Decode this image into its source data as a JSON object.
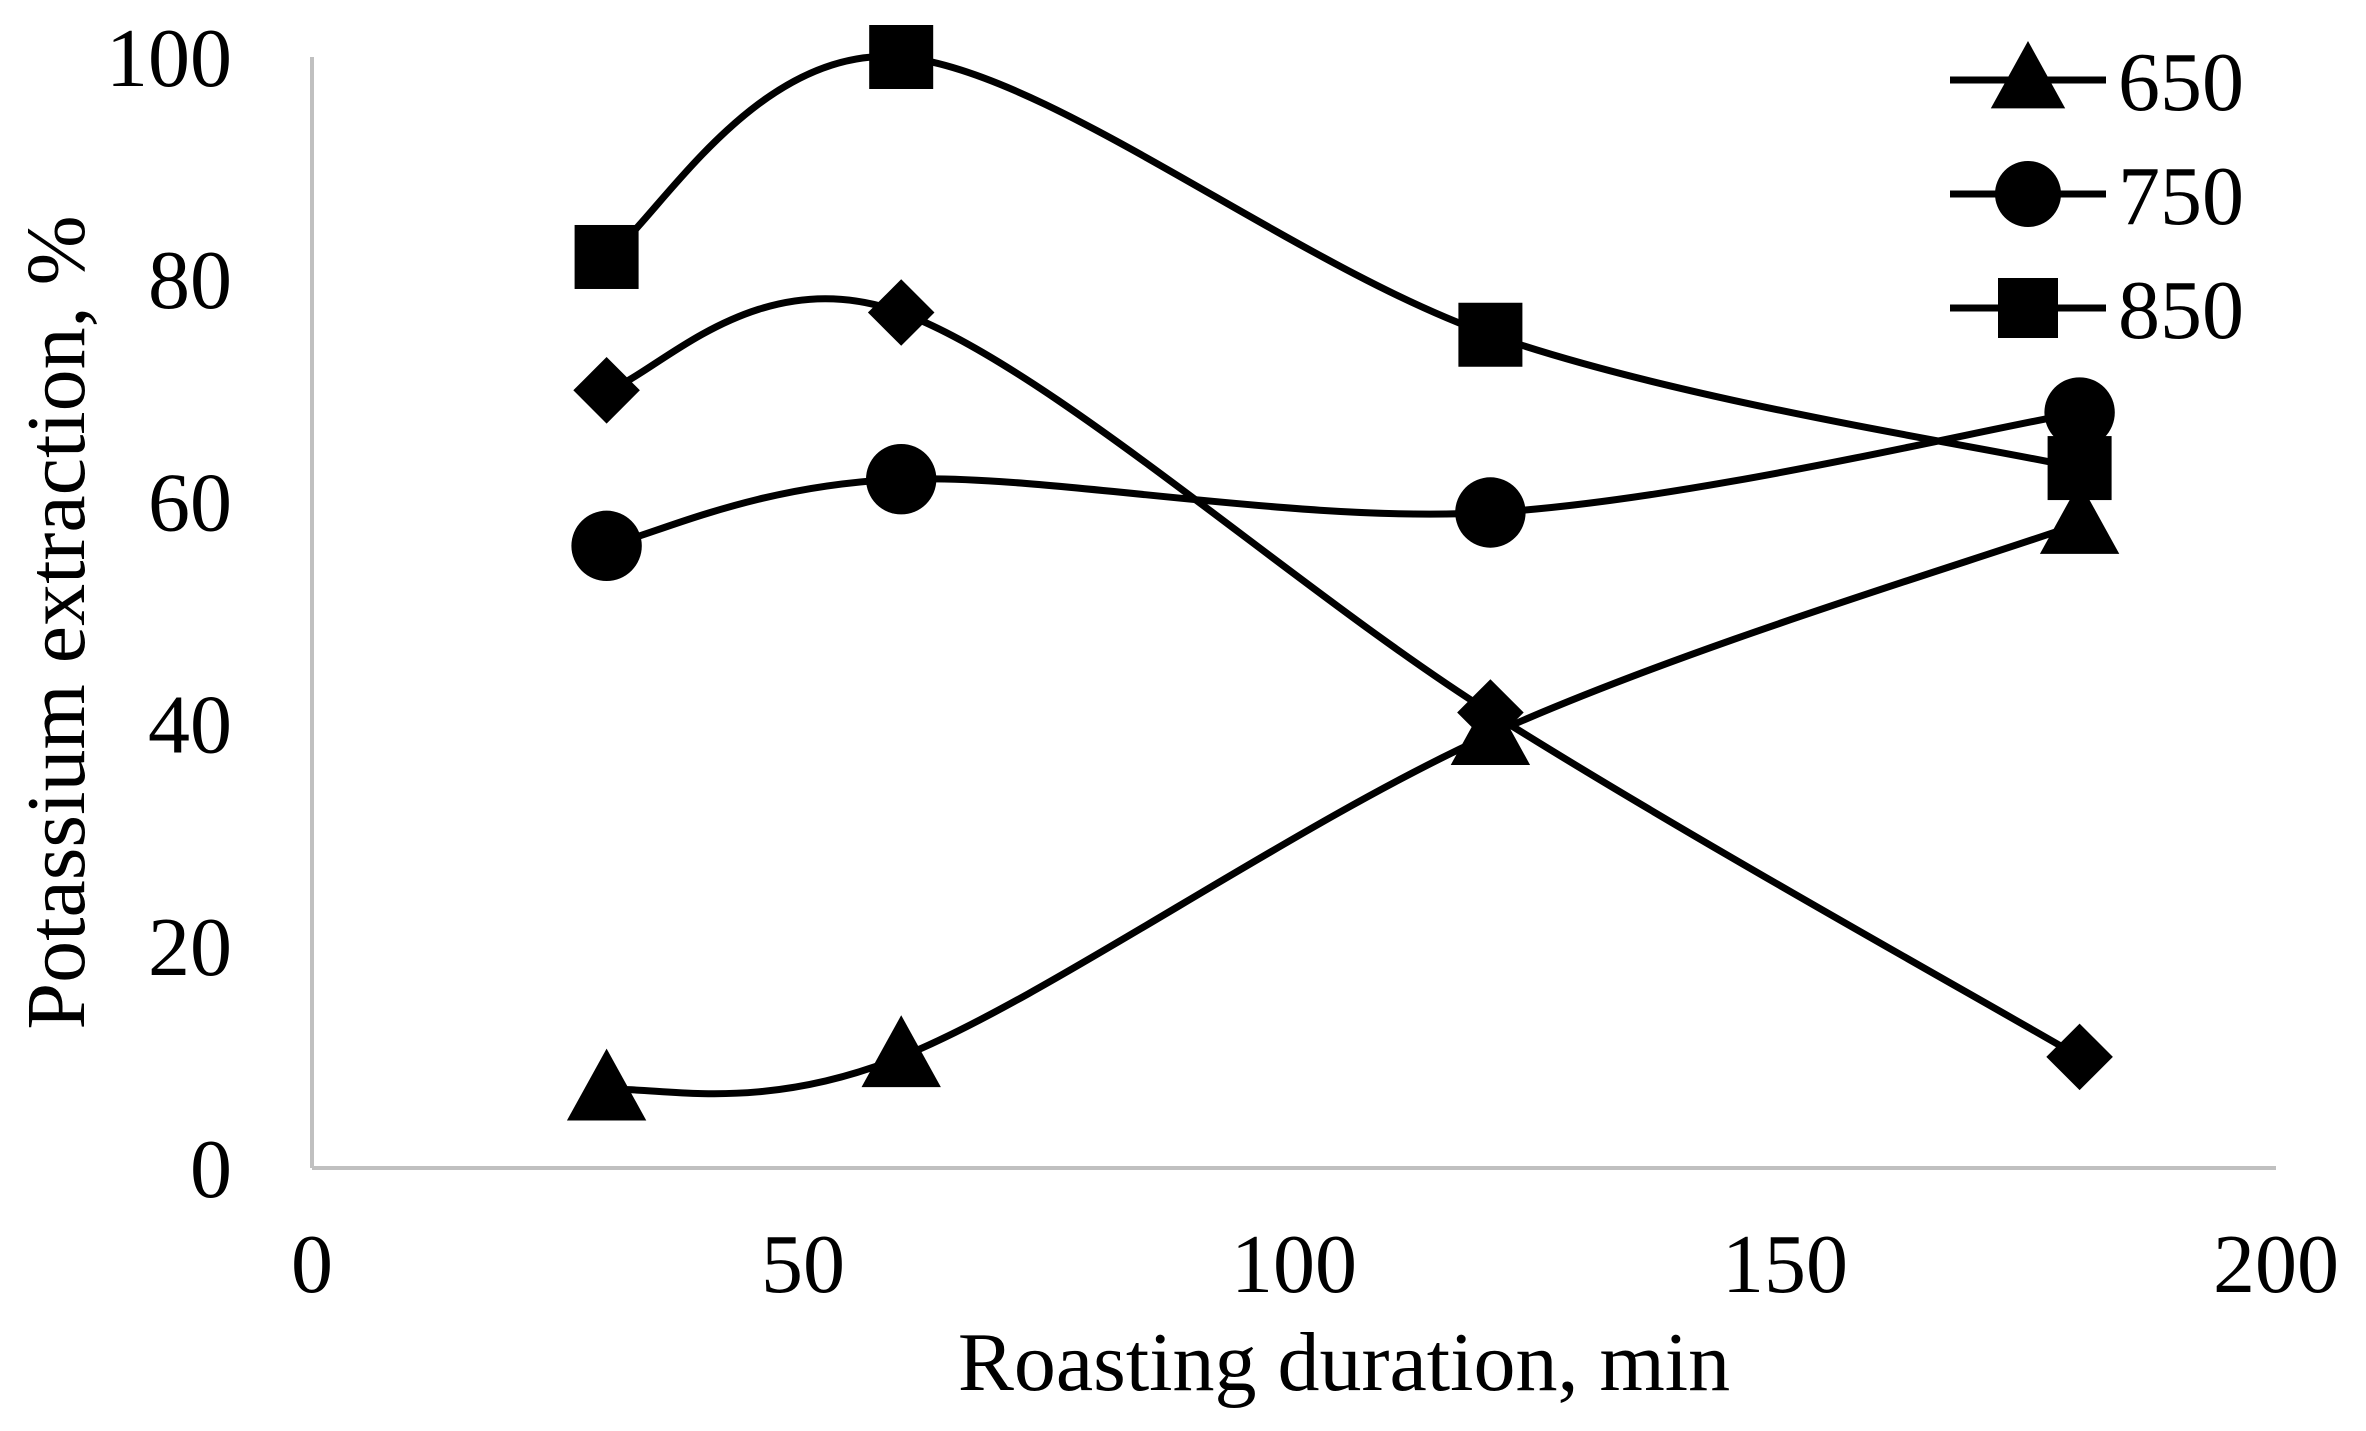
{
  "chart_data": {
    "type": "line",
    "title": "",
    "xlabel": "Roasting duration, min",
    "ylabel": "Potassium extraction, %",
    "xlim": [
      0,
      200
    ],
    "ylim": [
      0,
      100
    ],
    "xticks": [
      0,
      50,
      100,
      150,
      200
    ],
    "yticks": [
      0,
      20,
      40,
      60,
      80,
      100
    ],
    "xtick_labels": [
      "0",
      "50",
      "100",
      "150",
      "200"
    ],
    "ytick_labels": [
      "0",
      "20",
      "40",
      "60",
      "80",
      "100"
    ],
    "grid": false,
    "legend_position": "top-right",
    "line_color": "#000000",
    "axis_color": "#c0c0c0",
    "series": [
      {
        "name": "650",
        "marker": "triangle",
        "in_legend": true,
        "x": [
          30,
          60,
          120,
          180
        ],
        "values": [
          7,
          10,
          39,
          58
        ]
      },
      {
        "name": "750",
        "marker": "circle",
        "in_legend": true,
        "x": [
          30,
          60,
          120,
          180
        ],
        "values": [
          56,
          62,
          59,
          68
        ]
      },
      {
        "name": "850",
        "marker": "square",
        "in_legend": true,
        "x": [
          30,
          60,
          120,
          180
        ],
        "values": [
          82,
          100,
          75,
          63
        ]
      },
      {
        "name": "",
        "marker": "diamond",
        "in_legend": false,
        "x": [
          30,
          60,
          120,
          180
        ],
        "values": [
          70,
          77,
          41,
          10
        ]
      }
    ]
  }
}
